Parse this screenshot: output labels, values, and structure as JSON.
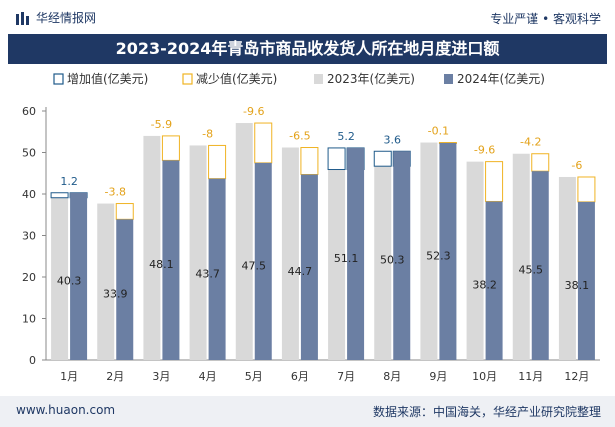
{
  "header": {
    "brand": "华经情报网",
    "tagline": "专业严谨 • 客观科学",
    "title": "2023-2024年青岛市商品收发货人所在地月度进口额"
  },
  "footer": {
    "website": "www.huaon.com",
    "source": "数据来源：中国海关，华经产业研究院整理"
  },
  "colors": {
    "bar2023": "#d9d9d9",
    "bar2024": "#6b7fa3",
    "increase": "#1f5a8a",
    "decrease": "#f0b323",
    "title_bg": "#1f3864"
  },
  "chart_data": {
    "type": "bar",
    "title": "2023-2024年青岛市商品收发货人所在地月度进口额",
    "categories": [
      "1月",
      "2月",
      "3月",
      "4月",
      "5月",
      "6月",
      "7月",
      "8月",
      "9月",
      "10月",
      "11月",
      "12月"
    ],
    "series": [
      {
        "name": "2023年(亿美元)",
        "values": [
          39.1,
          37.7,
          54.0,
          51.7,
          57.1,
          51.2,
          45.9,
          46.7,
          52.4,
          47.8,
          49.7,
          44.1
        ]
      },
      {
        "name": "2024年(亿美元)",
        "values": [
          40.3,
          33.9,
          48.1,
          43.7,
          47.5,
          44.7,
          51.1,
          50.3,
          52.3,
          38.2,
          45.5,
          38.1
        ]
      }
    ],
    "change": {
      "increase_name": "增加值(亿美元)",
      "decrease_name": "减少值(亿美元)",
      "values": [
        1.2,
        -3.8,
        -5.9,
        -8,
        -9.6,
        -6.5,
        5.2,
        3.6,
        -0.1,
        -9.6,
        -4.2,
        -6
      ]
    },
    "ylim": [
      0,
      60
    ],
    "yticks": [
      0,
      10,
      20,
      30,
      40,
      50,
      60
    ],
    "legend_position": "top"
  }
}
